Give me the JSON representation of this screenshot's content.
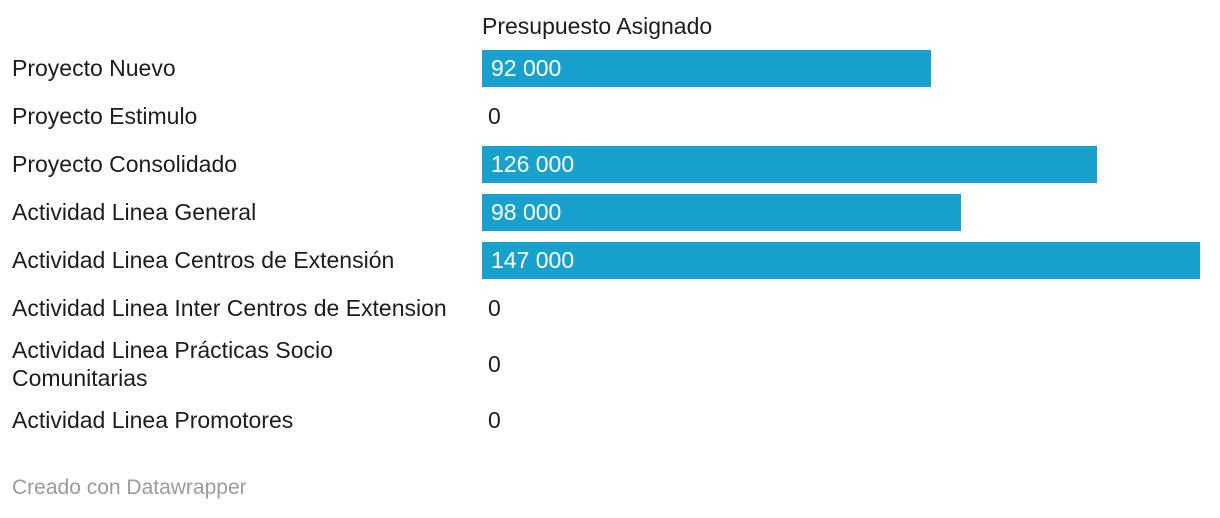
{
  "colors": {
    "bar_fill": "#18a1cd",
    "label_text": "#1d1d1d",
    "bar_value_text": "#ffffff",
    "zero_value_text": "#1d1d1d",
    "credit_text": "#9b9b9b",
    "background": "#ffffff"
  },
  "chart_data": {
    "type": "bar",
    "orientation": "horizontal",
    "value_column_header": "Presupuesto Asignado",
    "max_value": 147000,
    "grid": false,
    "legend": "none",
    "categories": [
      "Proyecto Nuevo",
      "Proyecto Estimulo",
      "Proyecto Consolidado",
      "Actividad Linea General",
      "Actividad Linea Centros de Extensión",
      "Actividad Linea Inter Centros de Extension",
      "Actividad Linea Prácticas Socio Comunitarias",
      "Actividad Linea Promotores"
    ],
    "values": [
      92000,
      0,
      126000,
      98000,
      147000,
      0,
      0,
      0
    ],
    "rows": [
      {
        "label": "Proyecto Nuevo",
        "value": 92000,
        "formatted": "92 000"
      },
      {
        "label": "Proyecto Estimulo",
        "value": 0,
        "formatted": "0"
      },
      {
        "label": "Proyecto Consolidado",
        "value": 126000,
        "formatted": "126 000"
      },
      {
        "label": "Actividad Linea General",
        "value": 98000,
        "formatted": "98 000"
      },
      {
        "label": "Actividad Linea Centros de Extensión",
        "value": 147000,
        "formatted": "147 000"
      },
      {
        "label": "Actividad Linea Inter Centros de Extension",
        "value": 0,
        "formatted": "0"
      },
      {
        "label": "Actividad Linea Prácticas Socio Comunitarias",
        "value": 0,
        "formatted": "0"
      },
      {
        "label": "Actividad Linea Promotores",
        "value": 0,
        "formatted": "0"
      }
    ]
  },
  "footer": {
    "credit": "Creado con Datawrapper"
  }
}
